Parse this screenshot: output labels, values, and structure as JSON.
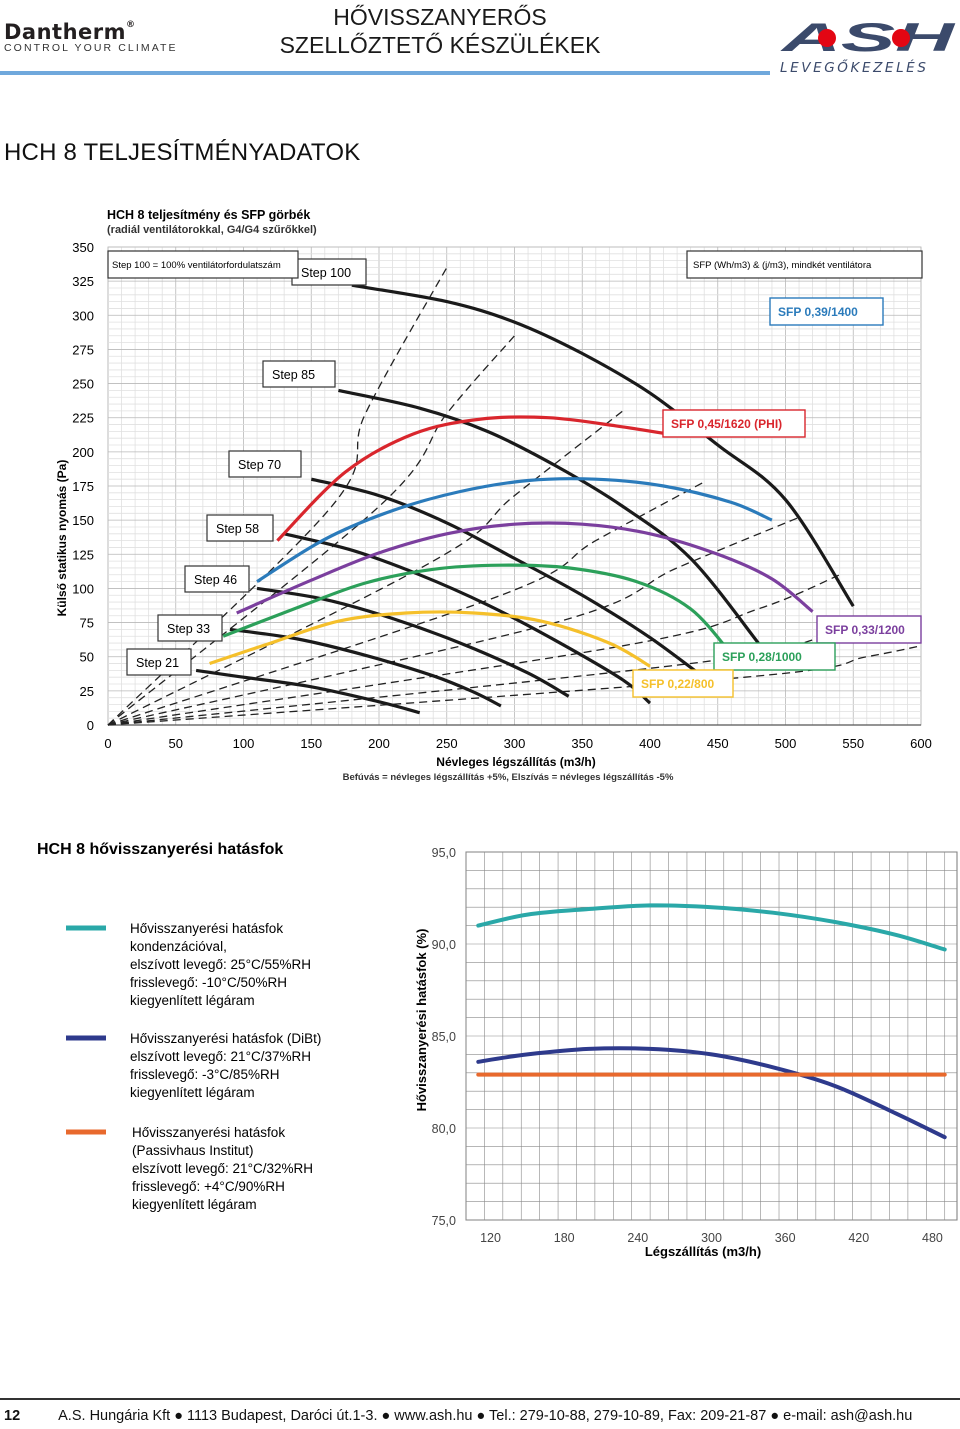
{
  "header": {
    "left_logo_brand": "Dantherm",
    "left_logo_tagline": "CONTROL YOUR CLIMATE",
    "title_line1": "HŐVISSZANYERŐS",
    "title_line2": "SZELLŐZTETŐ KÉSZÜLÉKEK",
    "right_logo_brand": "ASH",
    "right_logo_tagline": "LEVEGŐKEZELÉS",
    "accent_color": "#6fa8dc",
    "brand_red": "#e30613",
    "brand_navy": "#3b4a6b"
  },
  "section_title": "HCH 8 TELJESÍTMÉNYADATOK",
  "chart_data": [
    {
      "type": "line",
      "title": "HCH 8 teljesítmény és SFP görbék",
      "subtitle": "(radiál ventilátorokkal, G4/G4 szűrőkkel)",
      "xlabel": "Névleges légszállítás (m3/h)",
      "xnote": "Befúvás = névleges légszállítás +5%, Elszívás = névleges légszállítás -5%",
      "ylabel": "Külső statikus nyomás (Pa)",
      "xlim": [
        0,
        600
      ],
      "ylim": [
        0,
        350
      ],
      "x_ticks": [
        0,
        50,
        100,
        150,
        200,
        250,
        300,
        350,
        400,
        450,
        500,
        550,
        600
      ],
      "y_ticks": [
        0,
        25,
        50,
        75,
        100,
        125,
        150,
        175,
        200,
        225,
        250,
        275,
        300,
        325,
        350
      ],
      "legend_left": "Step 100 = 100% ventilátorfordulatszám",
      "legend_right": "SFP (Wh/m3) & (j/m3), mindkét ventilátora",
      "step_curves": [
        {
          "name": "Step 100",
          "x": [
            180,
            250,
            300,
            350,
            400,
            450,
            500,
            550
          ],
          "y": [
            322,
            310,
            295,
            272,
            243,
            205,
            165,
            87
          ]
        },
        {
          "name": "Step 85",
          "x": [
            170,
            230,
            280,
            330,
            380,
            430,
            480
          ],
          "y": [
            245,
            232,
            215,
            190,
            160,
            122,
            60
          ]
        },
        {
          "name": "Step 70",
          "x": [
            150,
            200,
            250,
            300,
            350,
            400,
            450
          ],
          "y": [
            180,
            168,
            148,
            122,
            95,
            64,
            27
          ]
        },
        {
          "name": "Step 58",
          "x": [
            130,
            180,
            230,
            280,
            330,
            380,
            400
          ],
          "y": [
            140,
            128,
            110,
            88,
            62,
            33,
            16
          ]
        },
        {
          "name": "Step 46",
          "x": [
            110,
            160,
            210,
            260,
            310,
            340
          ],
          "y": [
            100,
            92,
            78,
            60,
            38,
            21
          ]
        },
        {
          "name": "Step 33",
          "x": [
            90,
            140,
            190,
            240,
            270,
            290
          ],
          "y": [
            70,
            63,
            51,
            36,
            24,
            14
          ]
        },
        {
          "name": "Step 21",
          "x": [
            65,
            100,
            150,
            200,
            230
          ],
          "y": [
            40,
            35,
            28,
            17,
            9
          ]
        }
      ],
      "sfp_curves": [
        {
          "name": "SFP 0,45/1620 (PHI)",
          "color": "#d9262d",
          "x": [
            125,
            175,
            225,
            275,
            325,
            375,
            420
          ],
          "y": [
            135,
            185,
            213,
            224,
            225,
            219,
            212
          ]
        },
        {
          "name": "SFP 0,39/1400",
          "color": "#2b7bbb",
          "x": [
            110,
            160,
            210,
            260,
            310,
            360,
            410,
            460,
            490
          ],
          "y": [
            105,
            136,
            157,
            171,
            179,
            180,
            175,
            163,
            150
          ]
        },
        {
          "name": "SFP 0,33/1200",
          "color": "#7b3f9e",
          "x": [
            95,
            150,
            200,
            250,
            300,
            350,
            400,
            450,
            490,
            520
          ],
          "y": [
            82,
            106,
            126,
            140,
            147,
            147,
            140,
            125,
            107,
            83
          ]
        },
        {
          "name": "SFP 0,28/1000",
          "color": "#2ca05a",
          "x": [
            85,
            140,
            190,
            240,
            290,
            340,
            390,
            430,
            460
          ],
          "y": [
            65,
            86,
            104,
            114,
            117,
            115,
            105,
            85,
            52
          ]
        },
        {
          "name": "SFP 0,22/800",
          "color": "#f5c02b",
          "x": [
            75,
            120,
            170,
            220,
            270,
            320,
            370,
            400
          ],
          "y": [
            45,
            60,
            76,
            82,
            82,
            76,
            60,
            43
          ]
        }
      ],
      "system_lines": [
        {
          "x": [
            0,
            165,
            190,
            250
          ],
          "y": [
            0,
            160,
            228,
            335
          ]
        },
        {
          "x": [
            0,
            200,
            250,
            300
          ],
          "y": [
            0,
            160,
            228,
            285
          ]
        },
        {
          "x": [
            0,
            240,
            300,
            380
          ],
          "y": [
            0,
            120,
            168,
            230
          ]
        },
        {
          "x": [
            0,
            290,
            360,
            440
          ],
          "y": [
            0,
            95,
            135,
            178
          ]
        },
        {
          "x": [
            0,
            330,
            420,
            510
          ],
          "y": [
            0,
            75,
            115,
            152
          ]
        },
        {
          "x": [
            0,
            380,
            480,
            540
          ],
          "y": [
            0,
            58,
            85,
            110
          ]
        },
        {
          "x": [
            0,
            430,
            530,
            580
          ],
          "y": [
            0,
            45,
            65,
            78
          ]
        },
        {
          "x": [
            0,
            470,
            560,
            600
          ],
          "y": [
            0,
            35,
            50,
            58
          ]
        }
      ]
    },
    {
      "type": "line",
      "title": "HCH 8 hővisszanyerési hatásfok",
      "xlabel": "Légszállítás (m3/h)",
      "ylabel": "Hővisszanyerési hatásfok (%)",
      "xlim": [
        100,
        500
      ],
      "ylim": [
        75,
        95
      ],
      "x_ticks": [
        "120",
        "180",
        "240",
        "300",
        "360",
        "420",
        "480"
      ],
      "y_ticks": [
        "75,0",
        "80,0",
        "85,0",
        "90,0",
        "95,0"
      ],
      "series": [
        {
          "name": "Hővisszanyerési hatásfok kondenzációval",
          "color": "#2aa8a8",
          "legend_lines": [
            "Hővisszanyerési hatásfok",
            "kondenzációval,",
            "elszívott levegő: 25°C/55%RH",
            "frisslevegő: -10°C/50%RH",
            "kiegyenlített légáram"
          ],
          "x": [
            110,
            150,
            200,
            250,
            300,
            350,
            400,
            450,
            490
          ],
          "y": [
            91.0,
            91.6,
            91.9,
            92.1,
            92.0,
            91.7,
            91.2,
            90.5,
            89.7
          ]
        },
        {
          "name": "Hővisszanyerési hatásfok (DiBt)",
          "color": "#2e3a8c",
          "legend_lines": [
            "Hővisszanyerési hatásfok (DiBt)",
            "elszívott levegő: 21°C/37%RH",
            "frisslevegő: -3°C/85%RH",
            "kiegyenlített légáram"
          ],
          "x": [
            110,
            150,
            200,
            250,
            300,
            350,
            400,
            450,
            490
          ],
          "y": [
            83.6,
            84.0,
            84.3,
            84.3,
            84.0,
            83.3,
            82.3,
            80.8,
            79.5
          ]
        },
        {
          "name": "Hővisszanyerési hatásfok (Passivhaus Institut)",
          "color": "#e8692d",
          "legend_lines": [
            "Hővisszanyerési hatásfok",
            "(Passivhaus Institut)",
            "elszívott levegő: 21°C/32%RH",
            "frisslevegő: +4°C/90%RH",
            "kiegyenlített légáram"
          ],
          "x": [
            110,
            490
          ],
          "y": [
            82.9,
            82.9
          ]
        }
      ]
    }
  ],
  "footer": {
    "page_number": "12",
    "text": "A.S. Hungária Kft ● 1113 Budapest, Daróci út.1-3. ● www.ash.hu ● Tel.: 279-10-88, 279-10-89, Fax: 209-21-87 ● e-mail: ash@ash.hu"
  }
}
